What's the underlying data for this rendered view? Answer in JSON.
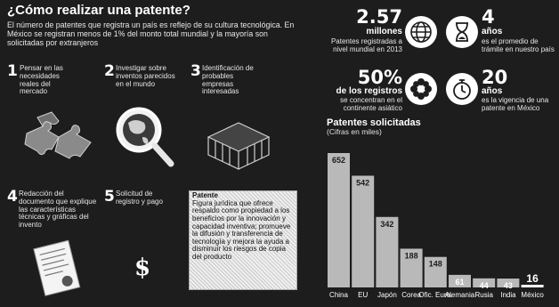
{
  "title": "¿Cómo realizar una patente?",
  "intro": "El número de patentes que registra un país es reflejo de su cultura tecnológica. En México se registran menos de 1% del monto total mundial y la mayoría son solicitadas por extranjeros",
  "steps": [
    {
      "number": "1",
      "text": "Pensar en las necesidades reales del mercado"
    },
    {
      "number": "2",
      "text": "Investigar sobre inventos parecidos en el mundo"
    },
    {
      "number": "3",
      "text": "Identificación de probables empresas interesadas"
    },
    {
      "number": "4",
      "text": "Redacción del documento que explique las características técnicas y gráficas del invento"
    },
    {
      "number": "5",
      "text": "Solicitud de registro y pago"
    }
  ],
  "definition": {
    "term": "Patente",
    "text": "Figura jurídica que ofrece respaldo como propiedad a los beneficios por la innovación y capacidad inventiva; promueve la difusión y transferencia de tecnología y mejora la ayuda a disminuir los riesgos de copia del producto"
  },
  "dollar_sign": "$",
  "stats": [
    {
      "value": "2.57",
      "unit": "millones",
      "desc": "Patentes registradas a nivel mundial en 2013",
      "icon": "globe-icon"
    },
    {
      "value": "4",
      "unit": "años",
      "desc": "es el promedio de trámite en nuestro país",
      "icon": "hourglass-icon"
    },
    {
      "value": "50%",
      "unit": "de los registros",
      "desc": "se concentran en el continente asiático",
      "icon": "flower-icon"
    },
    {
      "value": "20",
      "unit": "años",
      "desc": "es la vigencia de una patente en México",
      "icon": "stopwatch-icon"
    }
  ],
  "chart_data": {
    "type": "bar",
    "title": "Patentes solicitadas",
    "subtitle": "(Cifras en miles)",
    "categories": [
      "China",
      "EU",
      "Japón",
      "Corea",
      "Ofic. Euro.",
      "Alemania",
      "Rusia",
      "India",
      "México"
    ],
    "values": [
      652,
      542,
      342,
      188,
      148,
      61,
      44,
      43,
      16
    ],
    "value_labels": [
      "652",
      "542",
      "342",
      "188",
      "148",
      "61",
      "44",
      "43",
      "16"
    ],
    "bar_color": "#b9b9b9",
    "highlight_color": "#ffffff",
    "highlight_category": "México"
  }
}
